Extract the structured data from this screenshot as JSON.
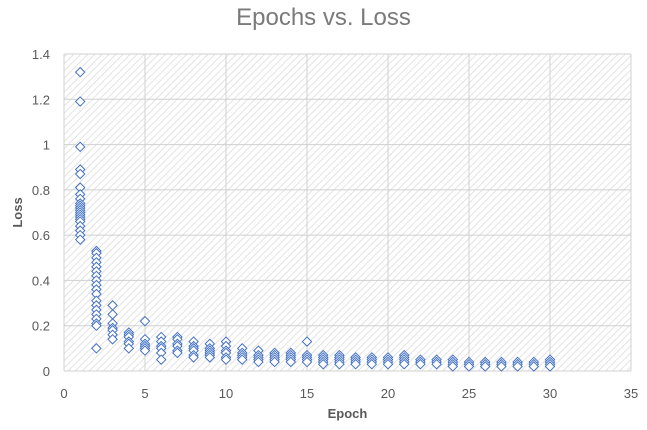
{
  "chart_data": {
    "type": "scatter",
    "title": "Epochs vs. Loss",
    "xlabel": "Epoch",
    "ylabel": "Loss",
    "xlim": [
      0,
      35
    ],
    "ylim": [
      0,
      1.4
    ],
    "x_ticks": [
      "0",
      "5",
      "10",
      "15",
      "20",
      "25",
      "30",
      "35"
    ],
    "y_ticks": [
      "0",
      "0.2",
      "0.4",
      "0.6",
      "0.8",
      "1",
      "1.2",
      "1.4"
    ],
    "grid": true,
    "marker": "diamond-open",
    "marker_color": "#4472c4",
    "points": [
      [
        1,
        1.32
      ],
      [
        1,
        1.19
      ],
      [
        1,
        0.99
      ],
      [
        1,
        0.89
      ],
      [
        1,
        0.87
      ],
      [
        1,
        0.81
      ],
      [
        1,
        0.78
      ],
      [
        1,
        0.76
      ],
      [
        1,
        0.74
      ],
      [
        1,
        0.73
      ],
      [
        1,
        0.72
      ],
      [
        1,
        0.71
      ],
      [
        1,
        0.7
      ],
      [
        1,
        0.69
      ],
      [
        1,
        0.68
      ],
      [
        1,
        0.67
      ],
      [
        1,
        0.66
      ],
      [
        1,
        0.64
      ],
      [
        1,
        0.62
      ],
      [
        1,
        0.6
      ],
      [
        1,
        0.58
      ],
      [
        2,
        0.53
      ],
      [
        2,
        0.52
      ],
      [
        2,
        0.5
      ],
      [
        2,
        0.48
      ],
      [
        2,
        0.46
      ],
      [
        2,
        0.44
      ],
      [
        2,
        0.42
      ],
      [
        2,
        0.4
      ],
      [
        2,
        0.38
      ],
      [
        2,
        0.36
      ],
      [
        2,
        0.34
      ],
      [
        2,
        0.31
      ],
      [
        2,
        0.29
      ],
      [
        2,
        0.27
      ],
      [
        2,
        0.25
      ],
      [
        2,
        0.23
      ],
      [
        2,
        0.21
      ],
      [
        2,
        0.2
      ],
      [
        2,
        0.1
      ],
      [
        3,
        0.29
      ],
      [
        3,
        0.25
      ],
      [
        3,
        0.21
      ],
      [
        3,
        0.19
      ],
      [
        3,
        0.18
      ],
      [
        3,
        0.16
      ],
      [
        3,
        0.14
      ],
      [
        4,
        0.17
      ],
      [
        4,
        0.16
      ],
      [
        4,
        0.15
      ],
      [
        4,
        0.13
      ],
      [
        4,
        0.12
      ],
      [
        4,
        0.1
      ],
      [
        5,
        0.22
      ],
      [
        5,
        0.14
      ],
      [
        5,
        0.12
      ],
      [
        5,
        0.11
      ],
      [
        5,
        0.1
      ],
      [
        5,
        0.09
      ],
      [
        6,
        0.15
      ],
      [
        6,
        0.13
      ],
      [
        6,
        0.11
      ],
      [
        6,
        0.1
      ],
      [
        6,
        0.08
      ],
      [
        6,
        0.05
      ],
      [
        7,
        0.15
      ],
      [
        7,
        0.14
      ],
      [
        7,
        0.12
      ],
      [
        7,
        0.11
      ],
      [
        7,
        0.09
      ],
      [
        7,
        0.08
      ],
      [
        8,
        0.13
      ],
      [
        8,
        0.11
      ],
      [
        8,
        0.1
      ],
      [
        8,
        0.09
      ],
      [
        8,
        0.07
      ],
      [
        8,
        0.06
      ],
      [
        9,
        0.12
      ],
      [
        9,
        0.1
      ],
      [
        9,
        0.09
      ],
      [
        9,
        0.08
      ],
      [
        9,
        0.07
      ],
      [
        9,
        0.06
      ],
      [
        10,
        0.13
      ],
      [
        10,
        0.11
      ],
      [
        10,
        0.09
      ],
      [
        10,
        0.08
      ],
      [
        10,
        0.06
      ],
      [
        10,
        0.05
      ],
      [
        11,
        0.1
      ],
      [
        11,
        0.08
      ],
      [
        11,
        0.07
      ],
      [
        11,
        0.06
      ],
      [
        11,
        0.05
      ],
      [
        12,
        0.09
      ],
      [
        12,
        0.07
      ],
      [
        12,
        0.06
      ],
      [
        12,
        0.05
      ],
      [
        12,
        0.04
      ],
      [
        13,
        0.08
      ],
      [
        13,
        0.07
      ],
      [
        13,
        0.06
      ],
      [
        13,
        0.05
      ],
      [
        13,
        0.04
      ],
      [
        14,
        0.08
      ],
      [
        14,
        0.07
      ],
      [
        14,
        0.06
      ],
      [
        14,
        0.05
      ],
      [
        14,
        0.04
      ],
      [
        15,
        0.13
      ],
      [
        15,
        0.07
      ],
      [
        15,
        0.06
      ],
      [
        15,
        0.05
      ],
      [
        15,
        0.04
      ],
      [
        16,
        0.07
      ],
      [
        16,
        0.06
      ],
      [
        16,
        0.05
      ],
      [
        16,
        0.04
      ],
      [
        16,
        0.03
      ],
      [
        17,
        0.07
      ],
      [
        17,
        0.06
      ],
      [
        17,
        0.05
      ],
      [
        17,
        0.04
      ],
      [
        17,
        0.03
      ],
      [
        18,
        0.06
      ],
      [
        18,
        0.05
      ],
      [
        18,
        0.04
      ],
      [
        18,
        0.03
      ],
      [
        19,
        0.06
      ],
      [
        19,
        0.05
      ],
      [
        19,
        0.04
      ],
      [
        19,
        0.03
      ],
      [
        20,
        0.06
      ],
      [
        20,
        0.05
      ],
      [
        20,
        0.04
      ],
      [
        20,
        0.03
      ],
      [
        21,
        0.07
      ],
      [
        21,
        0.06
      ],
      [
        21,
        0.05
      ],
      [
        21,
        0.04
      ],
      [
        21,
        0.03
      ],
      [
        22,
        0.05
      ],
      [
        22,
        0.04
      ],
      [
        22,
        0.03
      ],
      [
        23,
        0.05
      ],
      [
        23,
        0.04
      ],
      [
        23,
        0.03
      ],
      [
        24,
        0.05
      ],
      [
        24,
        0.04
      ],
      [
        24,
        0.03
      ],
      [
        24,
        0.02
      ],
      [
        25,
        0.04
      ],
      [
        25,
        0.03
      ],
      [
        25,
        0.02
      ],
      [
        26,
        0.04
      ],
      [
        26,
        0.03
      ],
      [
        26,
        0.02
      ],
      [
        27,
        0.04
      ],
      [
        27,
        0.03
      ],
      [
        27,
        0.02
      ],
      [
        28,
        0.04
      ],
      [
        28,
        0.03
      ],
      [
        28,
        0.02
      ],
      [
        29,
        0.04
      ],
      [
        29,
        0.03
      ],
      [
        29,
        0.02
      ],
      [
        30,
        0.05
      ],
      [
        30,
        0.04
      ],
      [
        30,
        0.03
      ],
      [
        30,
        0.02
      ]
    ]
  }
}
